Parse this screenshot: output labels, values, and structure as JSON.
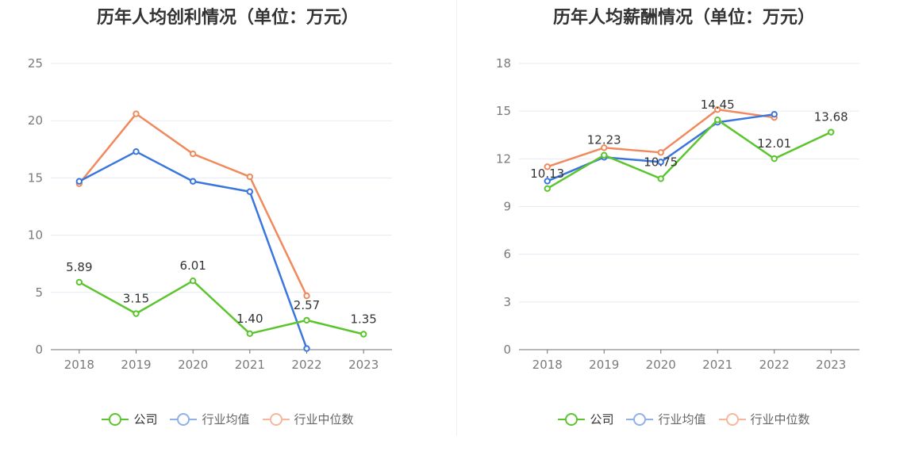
{
  "legend": {
    "company": "公司",
    "industry_avg": "行业均值",
    "industry_median": "行业中位数"
  },
  "colors": {
    "company": "#5cc52e",
    "industry_avg": "#3b76dd",
    "industry_median": "#f08a5d",
    "legend_company": "#5cc52e",
    "legend_avg": "#8fb0ec",
    "legend_median": "#f6b79b"
  },
  "chart_data": [
    {
      "type": "line",
      "title": "历年人均创利情况（单位：万元）",
      "categories": [
        "2018",
        "2019",
        "2020",
        "2021",
        "2022",
        "2023"
      ],
      "ylim": [
        0,
        25
      ],
      "yticks": [
        "0",
        "5",
        "10",
        "15",
        "20",
        "25"
      ],
      "grid": true,
      "legend_position": "bottom",
      "series": [
        {
          "name": "公司",
          "key": "company",
          "values": [
            5.89,
            3.15,
            6.01,
            1.4,
            2.57,
            1.35
          ],
          "labels": [
            "5.89",
            "3.15",
            "6.01",
            "1.40",
            "2.57",
            "1.35"
          ]
        },
        {
          "name": "行业均值",
          "key": "industry_avg",
          "values": [
            14.7,
            17.3,
            14.7,
            13.8,
            0.1,
            null
          ]
        },
        {
          "name": "行业中位数",
          "key": "industry_median",
          "values": [
            14.5,
            20.6,
            17.1,
            15.1,
            4.7,
            null
          ]
        }
      ]
    },
    {
      "type": "line",
      "title": "历年人均薪酬情况（单位：万元）",
      "categories": [
        "2018",
        "2019",
        "2020",
        "2021",
        "2022",
        "2023"
      ],
      "ylim": [
        0,
        18
      ],
      "yticks": [
        "0",
        "3",
        "6",
        "9",
        "12",
        "15",
        "18"
      ],
      "grid": true,
      "legend_position": "bottom",
      "series": [
        {
          "name": "公司",
          "key": "company",
          "values": [
            10.13,
            12.23,
            10.75,
            14.45,
            12.01,
            13.68
          ],
          "labels": [
            "10.13",
            "12.23",
            "10.75",
            "14.45",
            "12.01",
            "13.68"
          ]
        },
        {
          "name": "行业均值",
          "key": "industry_avg",
          "values": [
            10.6,
            12.1,
            11.8,
            14.3,
            14.8,
            null
          ]
        },
        {
          "name": "行业中位数",
          "key": "industry_median",
          "values": [
            11.5,
            12.7,
            12.4,
            15.1,
            14.6,
            null
          ]
        }
      ]
    }
  ]
}
